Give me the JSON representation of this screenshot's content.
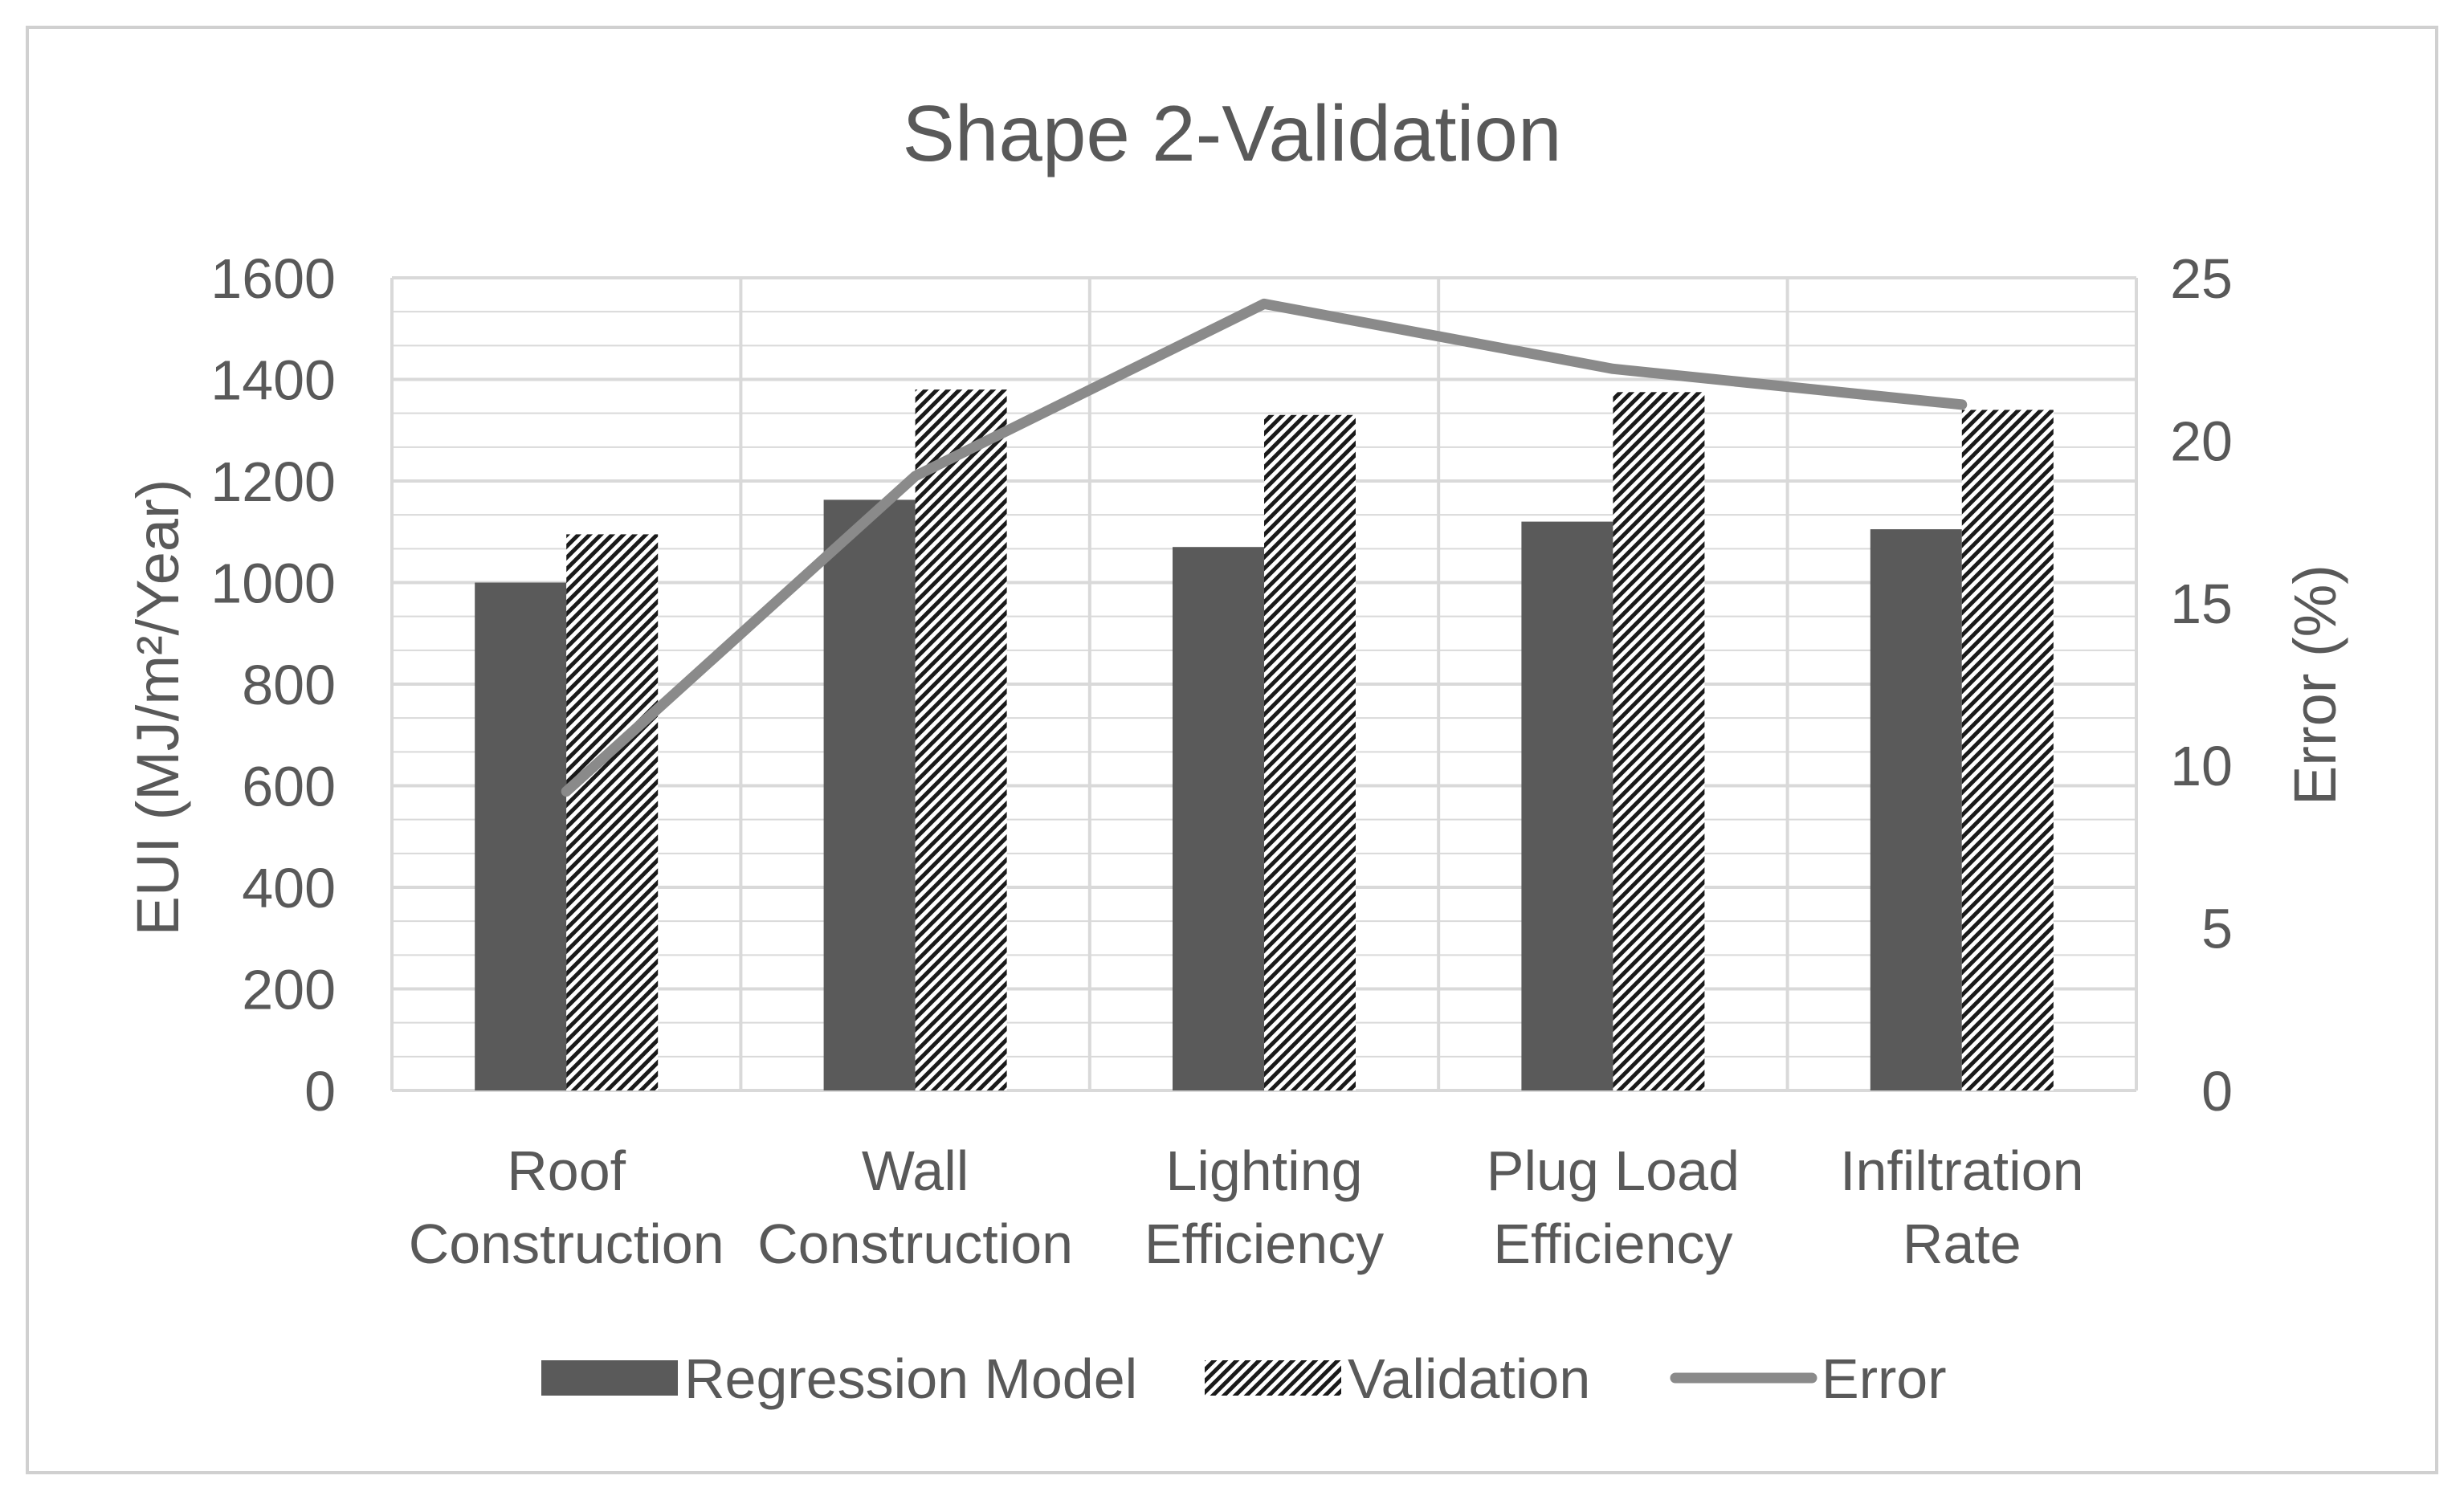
{
  "chart_data": {
    "type": "bar",
    "title": "Shape 2-Validation",
    "categories": [
      [
        "Roof",
        "Construction"
      ],
      [
        "Wall",
        "Construction"
      ],
      [
        "Lighting",
        "Efficiency"
      ],
      [
        "Plug Load",
        "Efficiency"
      ],
      [
        "Infiltration",
        "Rate"
      ]
    ],
    "series": [
      {
        "name": "Regression Model",
        "kind": "bar",
        "style": "solid",
        "color": "#5a5a5a",
        "axis": "left",
        "values": [
          1000,
          1163,
          1070,
          1120,
          1105
        ]
      },
      {
        "name": "Validation",
        "kind": "bar",
        "style": "hatched",
        "color": "#222222",
        "axis": "left",
        "values": [
          1095,
          1380,
          1330,
          1375,
          1340
        ]
      },
      {
        "name": "Error",
        "kind": "line",
        "color": "#8a8a8a",
        "axis": "right",
        "values": [
          9.2,
          18.9,
          24.2,
          22.2,
          21.1
        ]
      }
    ],
    "ylabel": "EUI (MJ/m²/Year)",
    "y2label": "Error (%)",
    "ylim": [
      0,
      1600
    ],
    "y2lim": [
      0,
      25
    ],
    "yticks": [
      "0",
      "200",
      "400",
      "600",
      "800",
      "1000",
      "1200",
      "1400",
      "1600"
    ],
    "y2ticks": [
      "0",
      "5",
      "10",
      "15",
      "20",
      "25"
    ],
    "legend_position": "bottom",
    "grid": true,
    "axis_color": "#595959",
    "grid_color": "#d9d9d9",
    "border_color": "#d0d0d0"
  }
}
